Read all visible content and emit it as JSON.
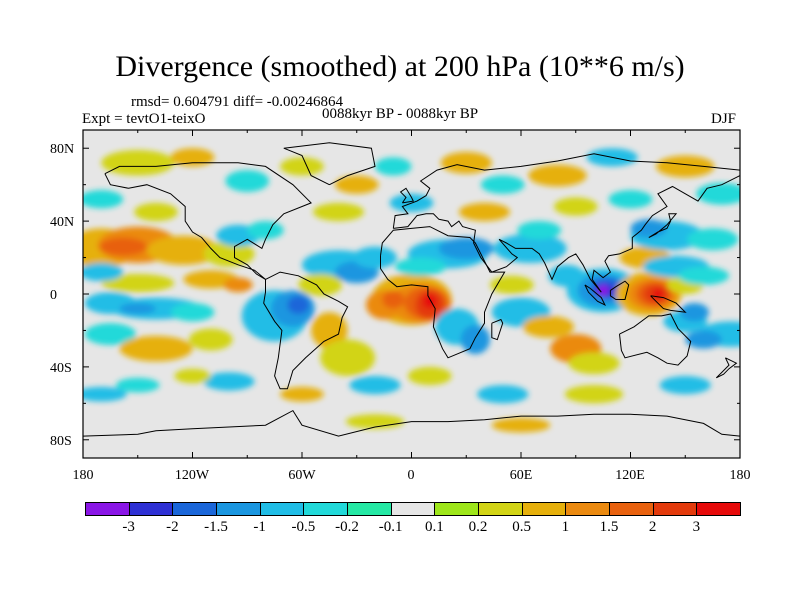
{
  "figure": {
    "title": "Divergence (smoothed) at 200 hPa (10**6 m/s)",
    "stats": "rmsd= 0.604791 diff= -0.00246864",
    "experiment": "Expt = tevtO1-teixO",
    "period": "0088kyr BP - 0088kyr BP",
    "season": "DJF"
  },
  "axes": {
    "lat_ticks": [
      "80N",
      "40N",
      "0",
      "40S",
      "80S"
    ],
    "lon_ticks": [
      "180",
      "120W",
      "60W",
      "0",
      "60E",
      "120E",
      "180"
    ]
  },
  "colorbar": {
    "labels": [
      "-3",
      "-2",
      "-1.5",
      "-1",
      "-0.5",
      "-0.2",
      "-0.1",
      "0.1",
      "0.2",
      "0.5",
      "1",
      "1.5",
      "2",
      "3"
    ],
    "colors": [
      "#8a16e6",
      "#2e30d4",
      "#1a66d9",
      "#1a96e0",
      "#20bde6",
      "#21d9d9",
      "#25e8a4",
      "#e6e6e6",
      "#9ee61a",
      "#d2d416",
      "#e6b00c",
      "#eb8a10",
      "#e8610e",
      "#e33a0c",
      "#e60a0a"
    ]
  },
  "chart_data": {
    "type": "heatmap",
    "title": "Divergence (smoothed) at 200 hPa (10**6 m/s)",
    "units": "10**6 m/s",
    "level_hPa": 200,
    "season": "DJF",
    "lon_range": [
      -180,
      180
    ],
    "lat_range": [
      -90,
      90
    ],
    "contour_levels": [
      -3,
      -2,
      -1.5,
      -1,
      -0.5,
      -0.2,
      -0.1,
      0.1,
      0.2,
      0.5,
      1,
      1.5,
      2,
      3
    ],
    "features": [
      {
        "name": "Africa positive max",
        "lon": 5,
        "lat": -5,
        "value": 3
      },
      {
        "name": "Maritime Continent positive max",
        "lon": 132,
        "lat": 0,
        "value": 3
      },
      {
        "name": "Indian Ocean negative min",
        "lon": 105,
        "lat": 2,
        "value": -3
      },
      {
        "name": "North Pacific positive",
        "lon": -155,
        "lat": 25,
        "value": 1.5
      },
      {
        "name": "South America negative",
        "lon": -65,
        "lat": -10,
        "value": -1
      },
      {
        "name": "Atlantic negative",
        "lon": -35,
        "lat": 15,
        "value": -1
      }
    ]
  }
}
